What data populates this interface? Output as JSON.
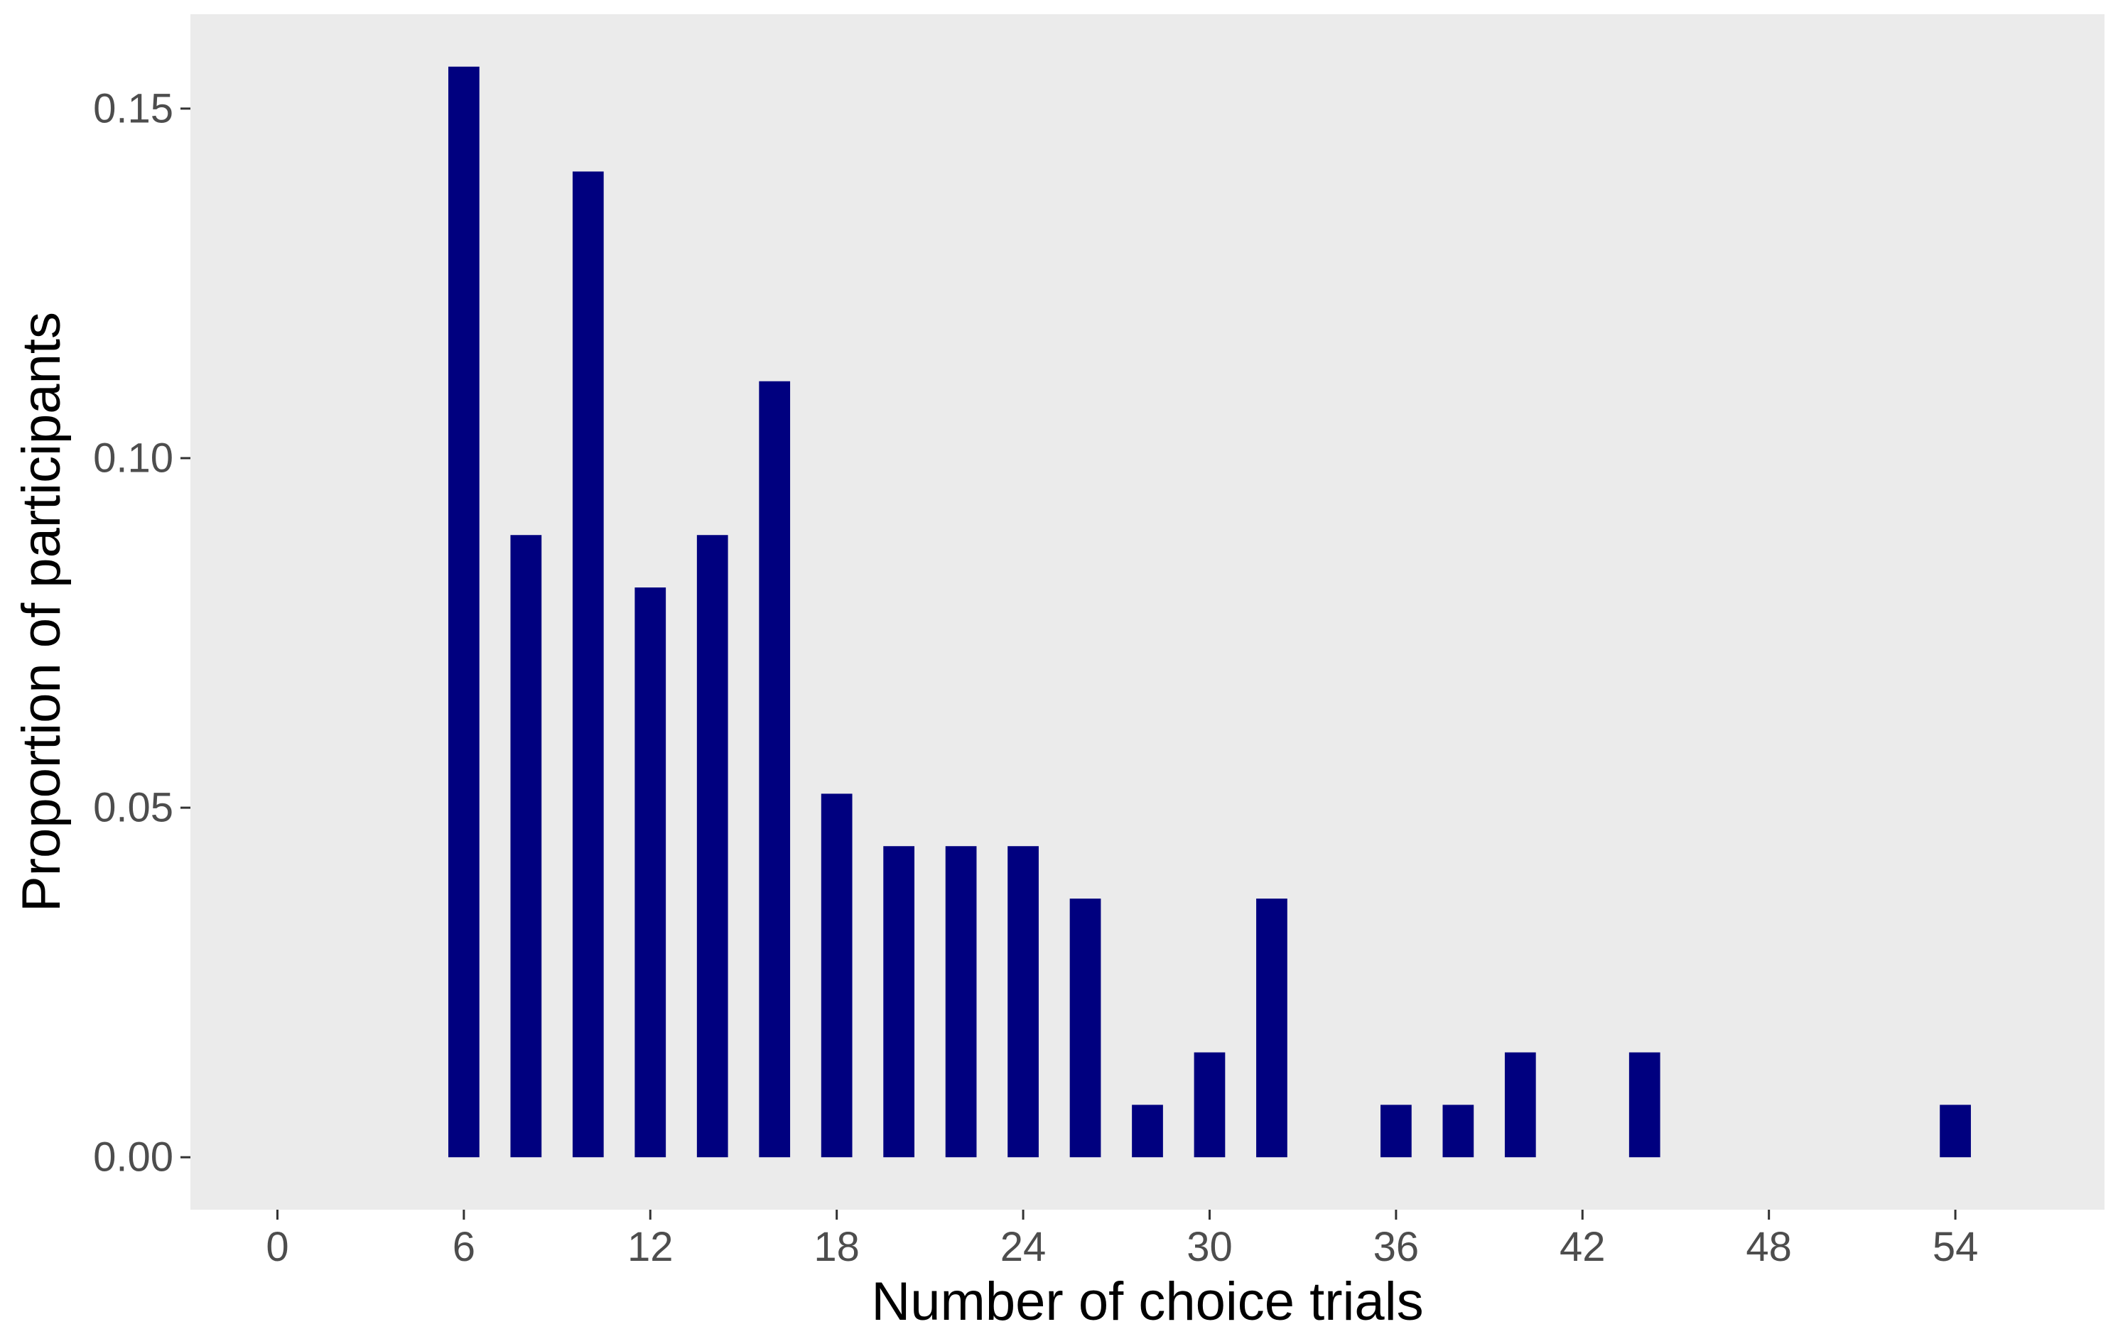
{
  "chart_data": {
    "type": "bar",
    "title": "",
    "xlabel": "Number of choice trials",
    "ylabel": "Proportion of participants",
    "x": [
      6,
      8,
      10,
      12,
      14,
      16,
      18,
      20,
      22,
      24,
      26,
      28,
      30,
      32,
      36,
      38,
      40,
      44,
      54
    ],
    "values": [
      0.156,
      0.089,
      0.141,
      0.0815,
      0.089,
      0.111,
      0.052,
      0.0445,
      0.0445,
      0.0445,
      0.037,
      0.0075,
      0.015,
      0.037,
      0.0075,
      0.0075,
      0.015,
      0.015,
      0.0075
    ],
    "xticks": [
      0,
      6,
      12,
      18,
      24,
      30,
      36,
      42,
      48,
      54
    ],
    "xtick_labels": [
      "0",
      "6",
      "12",
      "18",
      "24",
      "30",
      "36",
      "42",
      "48",
      "54"
    ],
    "yticks": [
      0.0,
      0.05,
      0.1,
      0.15
    ],
    "ytick_labels": [
      "0.00",
      "0.05",
      "0.10",
      "0.15"
    ],
    "xlim": [
      -2.8,
      58.8
    ],
    "ylim": [
      -0.0075,
      0.1635
    ],
    "bar_width": 1,
    "grid": false,
    "panel_color": "#ebebeb",
    "bar_color": "#00007f",
    "tick_color": "#333333"
  }
}
